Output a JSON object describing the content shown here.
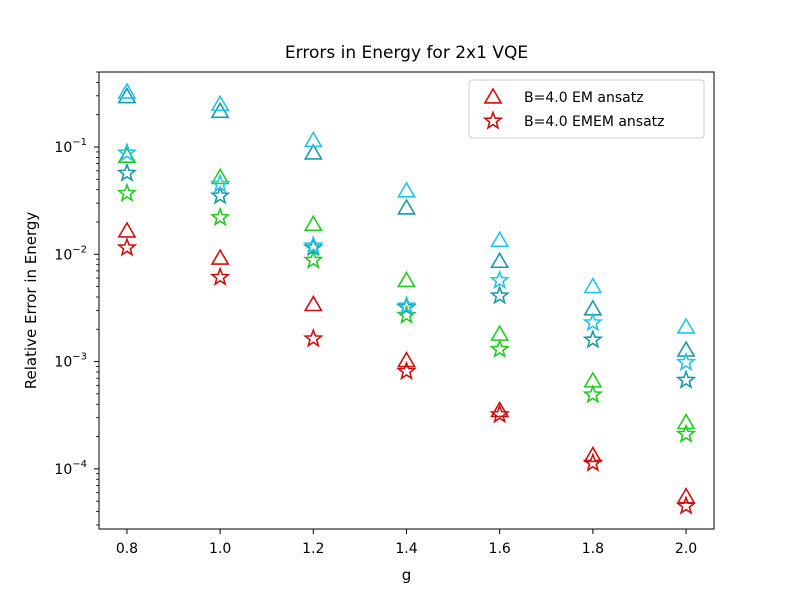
{
  "chart_data": {
    "type": "scatter",
    "title": "Errors in Energy for 2x1 VQE",
    "xlabel": "g",
    "ylabel": "Relative Error in Energy",
    "yscale": "log",
    "xlim": [
      0.74,
      2.06
    ],
    "ylim": [
      2.75e-05,
      0.5
    ],
    "x": [
      0.8,
      1.0,
      1.2,
      1.4,
      1.6,
      1.8,
      2.0
    ],
    "xticks": [
      0.8,
      1.0,
      1.2,
      1.4,
      1.6,
      1.8,
      2.0
    ],
    "xtick_labels": [
      "0.8",
      "1.0",
      "1.2",
      "1.4",
      "1.6",
      "1.8",
      "2.0"
    ],
    "yticks": [
      {
        "value": 0.1,
        "base": "10",
        "exp": "−1"
      },
      {
        "value": 0.01,
        "base": "10",
        "exp": "−2"
      },
      {
        "value": 0.001,
        "base": "10",
        "exp": "−3"
      },
      {
        "value": 0.0001,
        "base": "10",
        "exp": "−4"
      }
    ],
    "legend_position": "top-right",
    "legend": [
      {
        "label": "B=4.0 EM ansatz",
        "marker": "triangle",
        "color": "#cc1111"
      },
      {
        "label": "B=4.0 EMEM ansatz",
        "marker": "star",
        "color": "#cc1111"
      }
    ],
    "series": [
      {
        "name": "red EM",
        "marker": "triangle",
        "color": "#cc1111",
        "values": [
          0.0165,
          0.0092,
          0.0034,
          0.00102,
          0.00035,
          0.000133,
          5.5e-05
        ]
      },
      {
        "name": "red EMEM",
        "marker": "star",
        "color": "#cc1111",
        "values": [
          0.0115,
          0.0061,
          0.00163,
          0.00081,
          0.00032,
          0.000113,
          4.5e-05
        ]
      },
      {
        "name": "green EM",
        "marker": "triangle",
        "color": "#22cc22",
        "values": [
          0.082,
          0.052,
          0.019,
          0.0057,
          0.0018,
          0.00066,
          0.00027
        ]
      },
      {
        "name": "green EMEM",
        "marker": "star",
        "color": "#22cc22",
        "values": [
          0.037,
          0.022,
          0.0088,
          0.0027,
          0.0013,
          0.00049,
          0.00021
        ]
      },
      {
        "name": "teal EM",
        "marker": "triangle",
        "color": "#1a9aa8",
        "values": [
          0.295,
          0.215,
          0.088,
          0.027,
          0.0086,
          0.0031,
          0.00128
        ]
      },
      {
        "name": "teal EMEM",
        "marker": "star",
        "color": "#1a9aa8",
        "values": [
          0.057,
          0.035,
          0.0115,
          0.0032,
          0.0041,
          0.00159,
          0.00067
        ]
      },
      {
        "name": "cyan EM",
        "marker": "triangle",
        "color": "#22c4ee",
        "values": [
          0.325,
          0.25,
          0.115,
          0.039,
          0.0135,
          0.005,
          0.0021
        ]
      },
      {
        "name": "cyan EMEM",
        "marker": "star",
        "color": "#22c4ee",
        "values": [
          0.088,
          0.045,
          0.012,
          0.0033,
          0.0057,
          0.0023,
          0.00098
        ]
      }
    ]
  }
}
